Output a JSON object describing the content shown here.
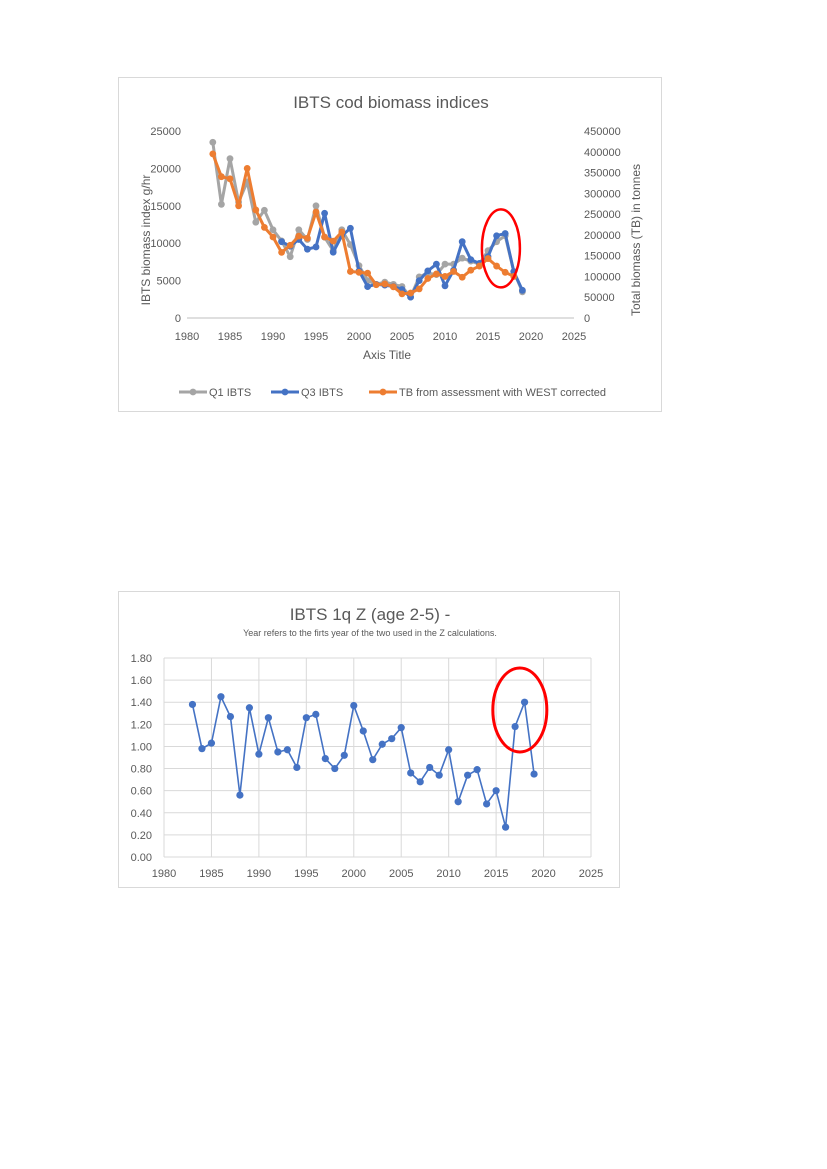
{
  "chart_data": [
    {
      "type": "line",
      "title": "IBTS cod biomass indices",
      "xlabel": "Axis Title",
      "ylabel": "IBTS biomass index g/hr",
      "y2label": "Total biomass (TB) in tonnes",
      "xlim": [
        1980,
        2025
      ],
      "ylim": [
        0,
        25000
      ],
      "y2lim": [
        0,
        450000
      ],
      "xticks": [
        "1980",
        "1985",
        "1990",
        "1995",
        "2000",
        "2005",
        "2010",
        "2015",
        "2020",
        "2025"
      ],
      "yticks": [
        "0",
        "5000",
        "10000",
        "15000",
        "20000",
        "25000"
      ],
      "y2ticks": [
        "0",
        "50000",
        "100000",
        "150000",
        "200000",
        "250000",
        "300000",
        "350000",
        "400000",
        "450000"
      ],
      "legend_position": "bottom",
      "highlight": {
        "shape": "ellipse",
        "color": "#ff0000",
        "around_years": [
          2015,
          2018
        ]
      },
      "series": [
        {
          "name": "Q1 IBTS",
          "axis": "left",
          "color": "#a5a5a5",
          "x": [
            1983,
            1984,
            1985,
            1986,
            1987,
            1988,
            1989,
            1990,
            1991,
            1992,
            1993,
            1994,
            1995,
            1996,
            1997,
            1998,
            1999,
            2000,
            2001,
            2002,
            2003,
            2004,
            2005,
            2006,
            2007,
            2008,
            2009,
            2010,
            2011,
            2012,
            2013,
            2014,
            2015,
            2016,
            2017,
            2018,
            2019
          ],
          "values": [
            23500,
            15200,
            21300,
            15500,
            18200,
            12800,
            14400,
            11800,
            10300,
            8200,
            11800,
            10500,
            15000,
            10800,
            9000,
            11800,
            9800,
            7000,
            5000,
            4500,
            4800,
            4500,
            4200,
            2800,
            5500,
            6000,
            5800,
            7200,
            7200,
            8000,
            7600,
            7200,
            9000,
            10200,
            11000,
            6200,
            3500
          ]
        },
        {
          "name": "Q3 IBTS",
          "axis": "left",
          "color": "#4472c4",
          "x": [
            1991,
            1992,
            1993,
            1994,
            1995,
            1996,
            1997,
            1998,
            1999,
            2000,
            2001,
            2002,
            2003,
            2004,
            2005,
            2006,
            2007,
            2008,
            2009,
            2010,
            2011,
            2012,
            2013,
            2014,
            2015,
            2016,
            2017,
            2018,
            2019
          ],
          "values": [
            10200,
            9600,
            10500,
            9200,
            9500,
            14000,
            8800,
            11000,
            12000,
            6300,
            4200,
            4500,
            4400,
            4200,
            3800,
            2800,
            5000,
            6300,
            7200,
            4300,
            6400,
            10200,
            7800,
            7300,
            8200,
            11000,
            11300,
            6200,
            3700
          ]
        },
        {
          "name": "TB from assessment with WEST corrected",
          "axis": "right",
          "color": "#ed7d31",
          "x": [
            1983,
            1984,
            1985,
            1986,
            1987,
            1988,
            1989,
            1990,
            1991,
            1992,
            1993,
            1994,
            1995,
            1996,
            1997,
            1998,
            1999,
            2000,
            2001,
            2002,
            2003,
            2004,
            2005,
            2006,
            2007,
            2008,
            2009,
            2010,
            2011,
            2012,
            2013,
            2014,
            2015,
            2016,
            2017,
            2018
          ],
          "values": [
            395000,
            340000,
            335000,
            270000,
            360000,
            260000,
            218000,
            195000,
            158000,
            175000,
            197000,
            192000,
            255000,
            195000,
            185000,
            207000,
            112000,
            110000,
            108000,
            80000,
            82000,
            75000,
            58000,
            60000,
            70000,
            95000,
            106000,
            100000,
            112000,
            98000,
            115000,
            125000,
            143000,
            125000,
            110000,
            100000
          ]
        }
      ]
    },
    {
      "type": "line",
      "title": "IBTS 1q Z (age 2-5) -",
      "subtitle": "Year refers to the firts year of the two used in the Z calculations.",
      "xlabel": "",
      "ylabel": "",
      "xlim": [
        1980,
        2025
      ],
      "ylim": [
        0,
        1.8
      ],
      "xticks": [
        "1980",
        "1985",
        "1990",
        "1995",
        "2000",
        "2005",
        "2010",
        "2015",
        "2020",
        "2025"
      ],
      "yticks": [
        "0.00",
        "0.20",
        "0.40",
        "0.60",
        "0.80",
        "1.00",
        "1.20",
        "1.40",
        "1.60",
        "1.80"
      ],
      "grid": true,
      "highlight": {
        "shape": "ellipse",
        "color": "#ff0000",
        "around_years": [
          2017,
          2018
        ]
      },
      "series": [
        {
          "name": "Z",
          "color": "#4472c4",
          "x": [
            1983,
            1984,
            1985,
            1986,
            1987,
            1988,
            1989,
            1990,
            1991,
            1992,
            1993,
            1994,
            1995,
            1996,
            1997,
            1998,
            1999,
            2000,
            2001,
            2002,
            2003,
            2004,
            2005,
            2006,
            2007,
            2008,
            2009,
            2010,
            2011,
            2012,
            2013,
            2014,
            2015,
            2016,
            2017,
            2018,
            2019
          ],
          "values": [
            1.38,
            0.98,
            1.03,
            1.45,
            1.27,
            0.56,
            1.35,
            0.93,
            1.26,
            0.95,
            0.97,
            0.81,
            1.26,
            1.29,
            0.89,
            0.8,
            0.92,
            1.37,
            1.14,
            0.88,
            1.02,
            1.07,
            1.17,
            0.76,
            0.68,
            0.81,
            0.74,
            0.97,
            0.5,
            0.74,
            0.79,
            0.48,
            0.6,
            0.27,
            1.18,
            1.4,
            0.75
          ]
        }
      ]
    }
  ]
}
